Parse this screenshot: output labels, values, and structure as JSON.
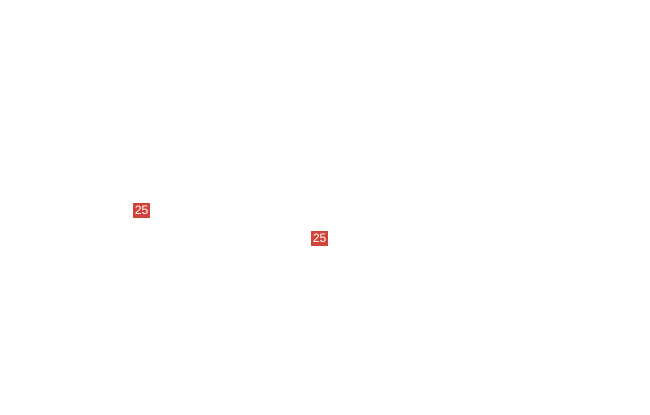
{
  "badge_color": "#d0443a",
  "badges": [
    {
      "label": "25"
    },
    {
      "label": "25"
    }
  ]
}
